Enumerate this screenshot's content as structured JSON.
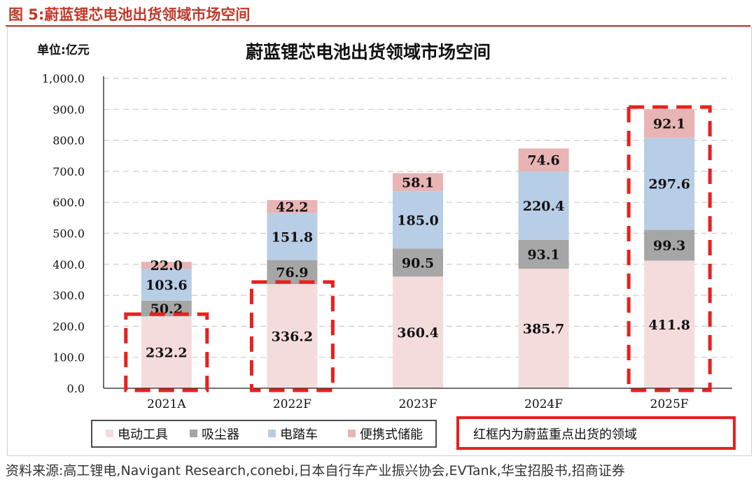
{
  "figure_label": "图 5:蔚蓝锂芯电池出货领域市场空间",
  "source": "资料来源:高工锂电,Navigant Research,conebi,日本自行车产业振兴协会,EVTank,华宝招股书,招商证券",
  "colors": {
    "tools": "#f5dcdc",
    "vacuum": "#a6a6a6",
    "ebike": "#b8cde6",
    "storage": "#e8b4b4",
    "highlight": "#e8201e",
    "grid": "#cccccc",
    "header": "#c0392b"
  },
  "chart_data": {
    "type": "bar",
    "stacked": true,
    "title": "蔚蓝锂芯电池出货领域市场空间",
    "unit_label": "单位:亿元",
    "categories": [
      "2021A",
      "2022F",
      "2023F",
      "2024F",
      "2025F"
    ],
    "series": [
      {
        "name": "电动工具",
        "color_key": "tools",
        "values": [
          232.2,
          336.2,
          360.4,
          385.7,
          411.8
        ]
      },
      {
        "name": "吸尘器",
        "color_key": "vacuum",
        "values": [
          50.2,
          76.9,
          90.5,
          93.1,
          99.3
        ]
      },
      {
        "name": "电踏车",
        "color_key": "ebike",
        "values": [
          103.6,
          151.8,
          185.0,
          220.4,
          297.6
        ]
      },
      {
        "name": "便携式储能",
        "color_key": "storage",
        "values": [
          22.0,
          42.2,
          58.1,
          74.6,
          92.1
        ]
      }
    ],
    "ylim": [
      0,
      1000
    ],
    "yticks": [
      "0.0",
      "100.0",
      "200.0",
      "300.0",
      "400.0",
      "500.0",
      "600.0",
      "700.0",
      "800.0",
      "900.0",
      "1,000.0"
    ],
    "grid": "dashed horizontal",
    "legend_position": "bottom",
    "highlight_note": "红框内为蔚蓝重点出货的领域",
    "highlights": [
      {
        "category": "2021A",
        "series_from": 0,
        "series_to": 0
      },
      {
        "category": "2022F",
        "series_from": 0,
        "series_to": 0
      },
      {
        "category": "2025F",
        "series_from": 0,
        "series_to": 3
      }
    ]
  }
}
